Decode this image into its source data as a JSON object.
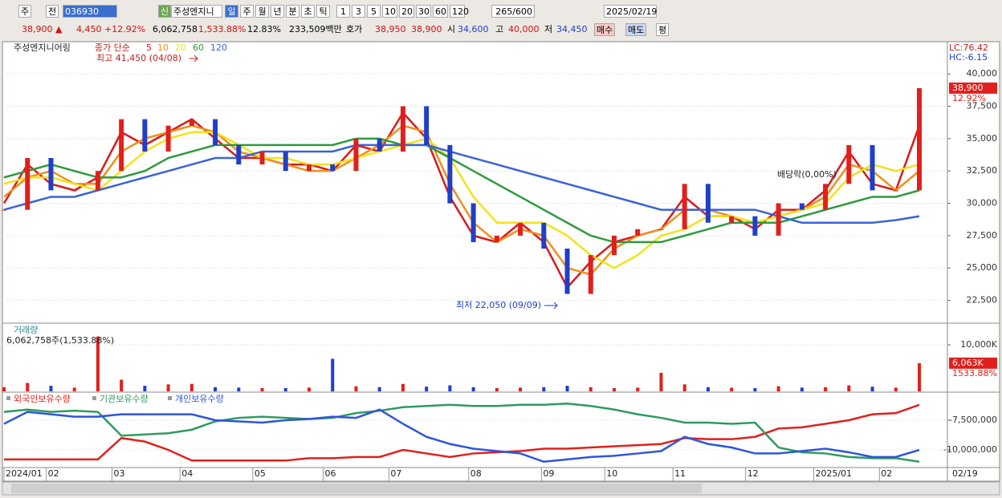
{
  "toolbar": {
    "market": "주",
    "prev": "전",
    "code": "036930",
    "badge": "신",
    "name": "주성엔지니",
    "periods": [
      "일",
      "주",
      "월",
      "년",
      "분",
      "초",
      "틱"
    ],
    "minutes": [
      "1",
      "3",
      "5",
      "10",
      "20",
      "30",
      "60",
      "120"
    ],
    "count": "265",
    "max": "/600",
    "date": "2025/02/19"
  },
  "info": {
    "price": "38,900 ▲",
    "change": "4,450",
    "rate": "+12.92%",
    "volume": "6,062,758",
    "volume_rate": "1,533.88%",
    "turnover": "12.83%",
    "amount": "233,509백만",
    "quote": "호가",
    "ask": "38,950",
    "bid": "38,900",
    "open_label": "시",
    "open": "34,600",
    "high_label": "고",
    "high": "40,000",
    "low_label": "저",
    "low": "34,450",
    "buy": "매수",
    "sell": "매도",
    "avg": "평"
  },
  "x_axis": {
    "xlim": [
      0,
      39
    ],
    "xticks": [
      {
        "value": 0,
        "label": "2024/01"
      },
      {
        "value": 1.8,
        "label": "02"
      },
      {
        "value": 4.6,
        "label": "03"
      },
      {
        "value": 7.5,
        "label": "04"
      },
      {
        "value": 10.6,
        "label": "05"
      },
      {
        "value": 13.6,
        "label": "06"
      },
      {
        "value": 16.4,
        "label": "07"
      },
      {
        "value": 19.8,
        "label": "08"
      },
      {
        "value": 22.9,
        "label": "09"
      },
      {
        "value": 25.6,
        "label": "10"
      },
      {
        "value": 28.5,
        "label": "11"
      },
      {
        "value": 31.6,
        "label": "12"
      },
      {
        "value": 34.5,
        "label": "2025/01"
      },
      {
        "value": 37.3,
        "label": "02"
      }
    ],
    "end_label": "02/19"
  },
  "chart_data": [
    {
      "type": "candlestick",
      "title": "주성엔지니어링",
      "legend_prefix": "종가 단순",
      "ylim": [
        20800,
        42300
      ],
      "yticks": [
        {
          "value": 40000,
          "label": "40,000"
        },
        {
          "value": 37500,
          "label": "37,500"
        },
        {
          "value": 35000,
          "label": "35,000"
        },
        {
          "value": 32500,
          "label": "32,500"
        },
        {
          "value": 30000,
          "label": "30,000"
        },
        {
          "value": 27500,
          "label": "27,500"
        },
        {
          "value": 25000,
          "label": "25,000"
        },
        {
          "value": 22500,
          "label": "22,500"
        }
      ],
      "lc": "LC:76.42",
      "hc": "HC:-6.15",
      "last": {
        "value": 38900,
        "label": "38,900"
      },
      "last_rate": "12.92%",
      "up_color": "#e0201c",
      "down_color": "#1f3fc8",
      "close": [
        29500,
        33500,
        31000,
        31000,
        32500,
        36500,
        34000,
        36000,
        36500,
        34500,
        33000,
        34000,
        32500,
        33000,
        32500,
        35000,
        34000,
        37500,
        34500,
        30000,
        27000,
        27500,
        28500,
        26500,
        23000,
        26000,
        27500,
        28000,
        28000,
        31500,
        28500,
        29000,
        27500,
        30000,
        29500,
        31500,
        34500,
        31000,
        31000,
        38900
      ],
      "series": [
        {
          "name": "5",
          "color": "#d81b1b",
          "values": [
            30000,
            33000,
            31500,
            31000,
            32000,
            35500,
            34500,
            35500,
            36500,
            35000,
            33500,
            33500,
            33000,
            33000,
            32500,
            34500,
            34000,
            37000,
            35000,
            30500,
            27500,
            27000,
            28500,
            27000,
            23500,
            25500,
            27000,
            27500,
            28000,
            30500,
            29000,
            29000,
            28000,
            29500,
            29500,
            31000,
            34000,
            31500,
            31000,
            36000
          ]
        },
        {
          "name": "10",
          "color": "#f0901a",
          "values": [
            30500,
            32000,
            32500,
            31500,
            31500,
            34000,
            35000,
            35500,
            36000,
            35500,
            34000,
            33500,
            33000,
            32500,
            32500,
            33500,
            34500,
            36000,
            35500,
            31500,
            28500,
            27000,
            28000,
            27500,
            25000,
            24500,
            26500,
            27500,
            28000,
            29500,
            29500,
            29000,
            28500,
            29000,
            29500,
            30500,
            33000,
            32500,
            31000,
            32500
          ]
        },
        {
          "name": "20",
          "color": "#f2e21c",
          "values": [
            31500,
            32000,
            32000,
            31500,
            31000,
            32500,
            34000,
            35000,
            35500,
            35500,
            34500,
            33500,
            33500,
            33000,
            33000,
            33500,
            34000,
            34500,
            35000,
            33500,
            30500,
            28500,
            28500,
            28500,
            27500,
            26000,
            25000,
            26000,
            27500,
            28000,
            29000,
            29000,
            28500,
            29000,
            29500,
            30000,
            32000,
            33000,
            32500,
            33000
          ]
        },
        {
          "name": "60",
          "color": "#2e9a3e",
          "values": [
            32000,
            32500,
            33000,
            32500,
            32000,
            32000,
            32500,
            33500,
            34000,
            34500,
            34500,
            34500,
            34500,
            34500,
            34500,
            35000,
            35000,
            34500,
            34500,
            33500,
            32500,
            31500,
            30500,
            29500,
            28500,
            27500,
            27000,
            27000,
            27000,
            27500,
            28000,
            28500,
            28500,
            28500,
            29000,
            29500,
            30000,
            30500,
            30500,
            31000
          ]
        },
        {
          "name": "120",
          "color": "#3a63d8",
          "values": [
            29500,
            30000,
            30500,
            30500,
            31000,
            31500,
            32000,
            32500,
            33000,
            33500,
            33500,
            34000,
            34000,
            34000,
            34000,
            34500,
            34500,
            34500,
            34500,
            34000,
            33500,
            33000,
            32500,
            32000,
            31500,
            31000,
            30500,
            30000,
            29500,
            29500,
            29500,
            29500,
            29500,
            29000,
            28500,
            28500,
            28500,
            28500,
            28700,
            29000
          ]
        }
      ],
      "annotations": [
        {
          "text": "최고 41,450 (04/08)",
          "color": "#c0201c"
        },
        {
          "text": "최저 22,050 (09/09)",
          "color": "#1f3fc8"
        },
        {
          "text": "배당락(0,00%)",
          "color": "#222222"
        }
      ]
    },
    {
      "type": "bar",
      "title": "거래량",
      "subtitle": "6,062,758주(1,533.88%)",
      "ylim": [
        0,
        14500
      ],
      "yticks": [
        {
          "value": 10000,
          "label": "10,000K"
        }
      ],
      "last": {
        "value": 6063,
        "label": "6,063K"
      },
      "last_rate": "1533.88%",
      "up_color": "#e0201c",
      "down_color": "#1f3fc8",
      "values": [
        900,
        1800,
        1200,
        800,
        11800,
        2500,
        1200,
        1500,
        1600,
        900,
        800,
        700,
        700,
        800,
        7000,
        1100,
        900,
        1600,
        1000,
        1300,
        900,
        700,
        800,
        900,
        1200,
        900,
        700,
        800,
        4000,
        1500,
        900,
        800,
        700,
        1100,
        800,
        900,
        1300,
        1000,
        800,
        6063
      ]
    },
    {
      "type": "line",
      "ylim": [
        -11420000,
        -5200000
      ],
      "yticks": [
        {
          "value": -7500000,
          "label": "-7,500,000"
        },
        {
          "value": -10000000,
          "label": "-10,000,000"
        }
      ],
      "series": [
        {
          "name": "외국인보유수량",
          "color": "#e0201c",
          "values": [
            -10800000,
            -10800000,
            -10800000,
            -10800000,
            -10800000,
            -9000000,
            -9300000,
            -10000000,
            -10900000,
            -10900000,
            -10900000,
            -10900000,
            -10900000,
            -10700000,
            -10700000,
            -10600000,
            -10600000,
            -10000000,
            -10300000,
            -10600000,
            -10300000,
            -10200000,
            -10100000,
            -9900000,
            -9900000,
            -9800000,
            -9700000,
            -9600000,
            -9500000,
            -9000000,
            -9100000,
            -9100000,
            -8900000,
            -8200000,
            -8100000,
            -7800000,
            -7500000,
            -7000000,
            -6900000,
            -6200000
          ]
        },
        {
          "name": "기관보유수량",
          "color": "#2e9a5e",
          "values": [
            -6800000,
            -6600000,
            -6800000,
            -6700000,
            -6800000,
            -8800000,
            -8700000,
            -8600000,
            -8300000,
            -7600000,
            -7300000,
            -7200000,
            -7300000,
            -7400000,
            -7300000,
            -6900000,
            -6700000,
            -6400000,
            -6300000,
            -6200000,
            -6300000,
            -6300000,
            -6200000,
            -6200000,
            -6100000,
            -6300000,
            -6600000,
            -7000000,
            -7300000,
            -7700000,
            -7700000,
            -7800000,
            -7700000,
            -9800000,
            -10200000,
            -10300000,
            -10600000,
            -10700000,
            -10700000,
            -11000000
          ]
        },
        {
          "name": "개인보유수량",
          "color": "#2e55e0",
          "values": [
            -7800000,
            -6800000,
            -7000000,
            -7200000,
            -7200000,
            -7000000,
            -7000000,
            -7000000,
            -7000000,
            -7500000,
            -7600000,
            -7700000,
            -7500000,
            -7400000,
            -7200000,
            -7300000,
            -6600000,
            -7800000,
            -8900000,
            -9500000,
            -9900000,
            -10100000,
            -10300000,
            -11000000,
            -10800000,
            -10600000,
            -10500000,
            -10300000,
            -10100000,
            -8900000,
            -9500000,
            -9800000,
            -10300000,
            -10300000,
            -10100000,
            -9900000,
            -10200000,
            -10600000,
            -10600000,
            -10000000
          ]
        }
      ]
    }
  ]
}
